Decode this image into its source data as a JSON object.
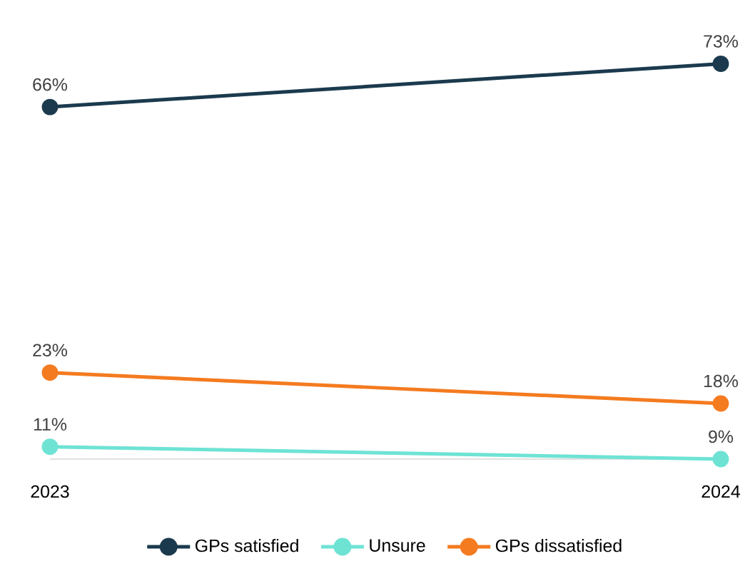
{
  "chart_data": {
    "type": "line",
    "categories": [
      "2023",
      "2024"
    ],
    "series": [
      {
        "name": "GPs satisfied",
        "color": "#1b3a4e",
        "values": [
          66,
          73
        ],
        "value_labels": [
          "66%",
          "73%"
        ]
      },
      {
        "name": "Unsure",
        "color": "#6ee3d4",
        "values": [
          11,
          9
        ],
        "value_labels": [
          "11%",
          "9%"
        ]
      },
      {
        "name": "GPs dissatisfied",
        "color": "#f47b20",
        "values": [
          23,
          18
        ],
        "value_labels": [
          "23%",
          "18%"
        ]
      }
    ],
    "tick_labels": "x",
    "grid": false,
    "legend": "bottom",
    "marker": "circle",
    "line_style": "solid"
  }
}
